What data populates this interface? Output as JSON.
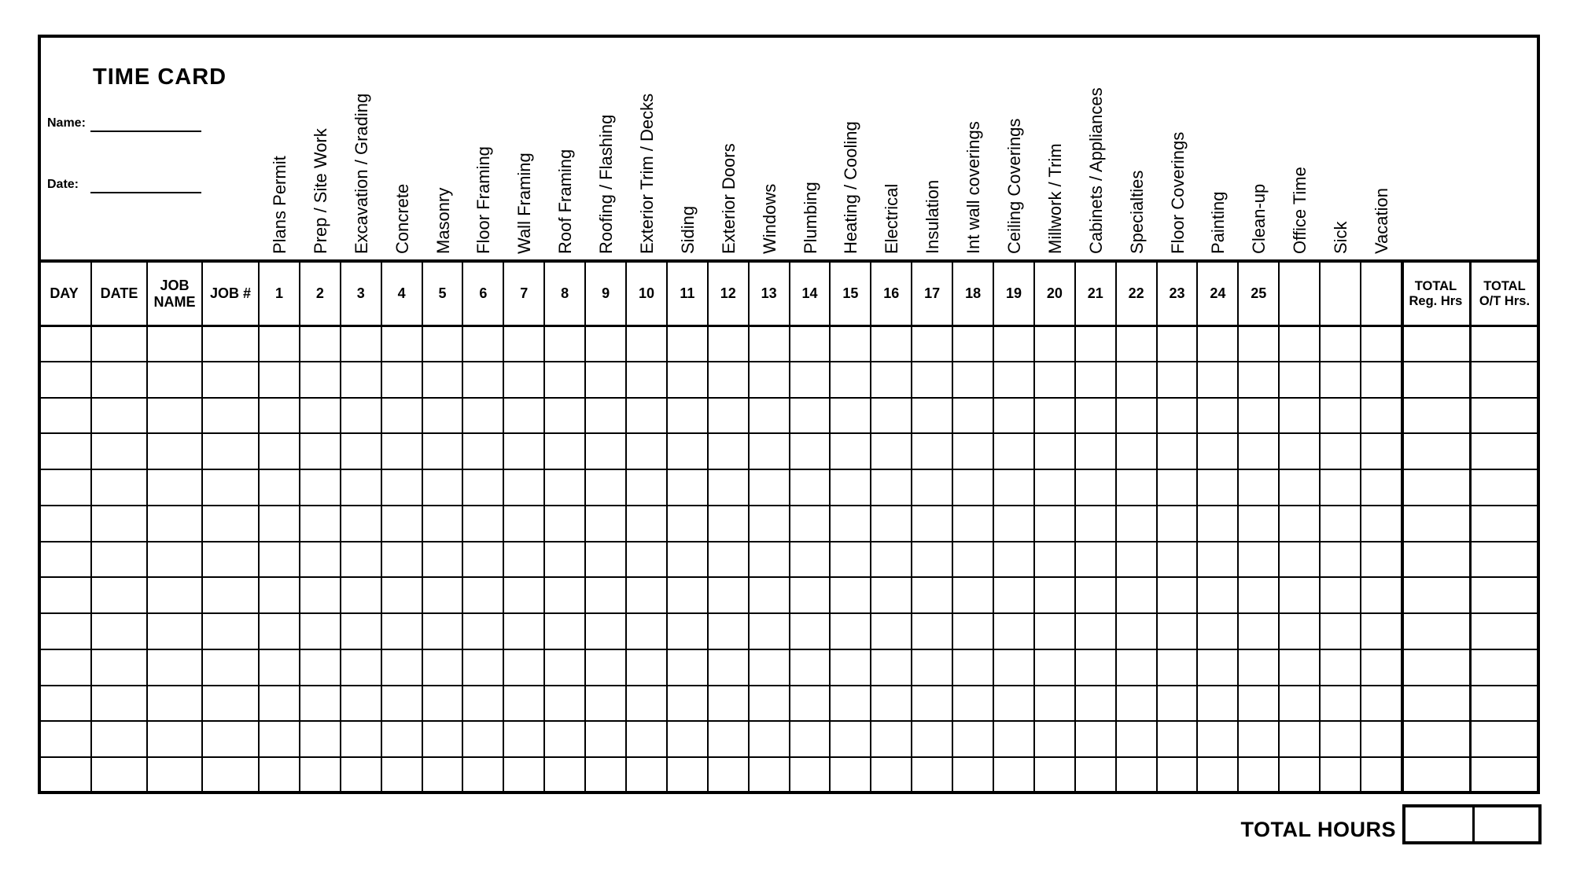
{
  "title": "TIME CARD",
  "fields": {
    "name_label": "Name:",
    "date_label": "Date:"
  },
  "table": {
    "fixed_headers": [
      "DAY",
      "DATE",
      "JOB NAME",
      "JOB #"
    ],
    "trade_columns": [
      {
        "num": "1",
        "label": "Plans Permit"
      },
      {
        "num": "2",
        "label": "Prep / Site Work"
      },
      {
        "num": "3",
        "label": "Excavation / Grading"
      },
      {
        "num": "4",
        "label": "Concrete"
      },
      {
        "num": "5",
        "label": "Masonry"
      },
      {
        "num": "6",
        "label": "Floor Framing"
      },
      {
        "num": "7",
        "label": "Wall Framing"
      },
      {
        "num": "8",
        "label": "Roof Framing"
      },
      {
        "num": "9",
        "label": "Roofing / Flashing"
      },
      {
        "num": "10",
        "label": "Exterior Trim / Decks"
      },
      {
        "num": "11",
        "label": "Siding"
      },
      {
        "num": "12",
        "label": "Exterior Doors"
      },
      {
        "num": "13",
        "label": "Windows"
      },
      {
        "num": "14",
        "label": "Plumbing"
      },
      {
        "num": "15",
        "label": "Heating / Cooling"
      },
      {
        "num": "16",
        "label": "Electrical"
      },
      {
        "num": "17",
        "label": "Insulation"
      },
      {
        "num": "18",
        "label": "Int wall coverings"
      },
      {
        "num": "19",
        "label": "Ceiling Coverings"
      },
      {
        "num": "20",
        "label": "Millwork / Trim"
      },
      {
        "num": "21",
        "label": "Cabinets / Appliances"
      },
      {
        "num": "22",
        "label": "Specialties"
      },
      {
        "num": "23",
        "label": "Floor Coverings"
      },
      {
        "num": "24",
        "label": "Painting"
      },
      {
        "num": "25",
        "label": "Clean-up"
      },
      {
        "num": "",
        "label": "Office Time"
      },
      {
        "num": "",
        "label": "Sick"
      },
      {
        "num": "",
        "label": "Vacation"
      }
    ],
    "total_columns": [
      {
        "line1": "TOTAL",
        "line2": "Reg. Hrs"
      },
      {
        "line1": "TOTAL",
        "line2": "O/T Hrs."
      }
    ],
    "row_count": 13
  },
  "footer": {
    "total_hours_label": "TOTAL HOURS"
  },
  "colors": {
    "ink": "#000000",
    "paper": "#ffffff"
  }
}
